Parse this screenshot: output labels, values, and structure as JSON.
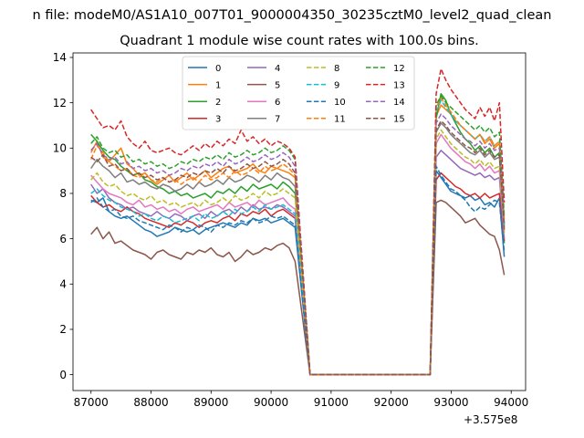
{
  "suptitle": "n file: modeM0/AS1A10_007T01_9000004350_30235cztM0_level2_quad_clean",
  "chart_data": {
    "type": "line",
    "title": "Quadrant 1 module wise count rates with 100.0s bins.",
    "xlabel": "",
    "ylabel": "",
    "x_offset_label": "+3.575e8",
    "xlim": [
      86700,
      94240
    ],
    "ylim": [
      -0.7,
      14.2
    ],
    "xticks": [
      87000,
      88000,
      89000,
      90000,
      91000,
      92000,
      93000,
      94000
    ],
    "yticks": [
      0,
      2,
      4,
      6,
      8,
      10,
      12,
      14
    ],
    "legend_loc": "upper center",
    "legend_ncol": 4,
    "gap_x": [
      90650,
      92650
    ],
    "series": [
      {
        "name": "0",
        "color": "#1f77b4",
        "dash": "solid",
        "start": [
          7.7,
          7.6,
          7.8,
          7.2,
          7.0,
          6.9,
          7.0,
          6.8,
          6.6,
          6.4,
          6.3,
          6.1,
          6.2,
          6.3,
          6.5,
          6.4,
          6.3,
          6.4,
          6.2,
          6.4,
          6.5,
          6.6,
          6.7,
          6.6,
          6.5,
          6.7,
          6.6,
          6.9,
          6.8,
          6.9,
          6.7,
          6.8,
          6.9,
          6.7,
          6.5
        ],
        "end": [
          9.0,
          8.7,
          8.4,
          8.1,
          8.0,
          7.9,
          7.8,
          7.9,
          7.7,
          7.8,
          7.5,
          7.6,
          7.4,
          7.8,
          5.2
        ]
      },
      {
        "name": "1",
        "color": "#ff7f0e",
        "dash": "solid",
        "start": [
          9.8,
          10.3,
          9.6,
          9.4,
          9.7,
          10.0,
          9.3,
          9.1,
          8.8,
          8.9,
          8.6,
          8.4,
          8.6,
          8.8,
          8.5,
          8.7,
          8.9,
          8.6,
          8.8,
          9.0,
          8.7,
          8.9,
          9.1,
          9.2,
          8.9,
          9.0,
          9.1,
          9.3,
          9.0,
          8.9,
          9.2,
          9.1,
          9.0,
          8.9,
          8.7
        ],
        "end": [
          11.4,
          11.9,
          11.7,
          11.5,
          11.2,
          11.0,
          10.8,
          10.6,
          10.4,
          10.6,
          10.2,
          10.4,
          10.0,
          10.2,
          6.5
        ]
      },
      {
        "name": "2",
        "color": "#2ca02c",
        "dash": "solid",
        "start": [
          10.6,
          10.3,
          9.9,
          9.6,
          9.5,
          9.2,
          9.0,
          8.8,
          8.9,
          8.6,
          8.5,
          8.3,
          8.2,
          8.0,
          8.1,
          7.9,
          8.0,
          7.8,
          7.9,
          8.0,
          7.8,
          8.1,
          8.0,
          8.2,
          8.0,
          8.3,
          8.1,
          8.4,
          8.2,
          8.3,
          8.4,
          8.2,
          8.5,
          8.3,
          8.0
        ],
        "end": [
          11.3,
          12.4,
          12.1,
          11.5,
          11.1,
          10.7,
          10.4,
          10.2,
          9.9,
          10.1,
          9.8,
          10.0,
          9.6,
          9.8,
          5.8
        ]
      },
      {
        "name": "3",
        "color": "#d62728",
        "dash": "solid",
        "start": [
          7.9,
          7.6,
          7.4,
          7.5,
          7.3,
          7.2,
          7.4,
          7.2,
          7.1,
          6.9,
          6.8,
          6.7,
          6.6,
          6.5,
          6.7,
          6.6,
          6.8,
          6.7,
          6.5,
          6.7,
          6.8,
          6.7,
          6.9,
          7.0,
          6.8,
          7.1,
          7.0,
          7.2,
          7.1,
          7.3,
          7.0,
          7.2,
          7.3,
          7.1,
          6.9
        ],
        "end": [
          8.6,
          8.9,
          8.7,
          8.5,
          8.3,
          8.2,
          8.0,
          7.9,
          8.0,
          7.8,
          8.0,
          7.8,
          7.9,
          8.0,
          5.9
        ]
      },
      {
        "name": "4",
        "color": "#9467bd",
        "dash": "solid",
        "start": [
          8.4,
          8.0,
          8.2,
          7.8,
          7.6,
          7.5,
          7.3,
          7.4,
          7.2,
          7.1,
          7.0,
          7.2,
          7.0,
          6.9,
          7.1,
          7.0,
          6.8,
          7.0,
          7.1,
          6.9,
          7.2,
          7.0,
          7.2,
          7.3,
          7.1,
          7.4,
          7.2,
          7.5,
          7.3,
          7.4,
          7.3,
          7.5,
          7.4,
          7.2,
          7.0
        ],
        "end": [
          9.6,
          9.9,
          9.7,
          9.5,
          9.3,
          9.1,
          9.0,
          8.9,
          8.8,
          8.9,
          8.7,
          8.8,
          8.6,
          8.7,
          6.0
        ]
      },
      {
        "name": "5",
        "color": "#8c564b",
        "dash": "solid",
        "start": [
          6.2,
          6.5,
          6.0,
          6.3,
          5.8,
          5.9,
          5.7,
          5.5,
          5.4,
          5.3,
          5.1,
          5.4,
          5.5,
          5.3,
          5.2,
          5.1,
          5.4,
          5.3,
          5.5,
          5.4,
          5.6,
          5.3,
          5.2,
          5.4,
          5.0,
          5.2,
          5.5,
          5.3,
          5.4,
          5.6,
          5.5,
          5.7,
          5.8,
          5.6,
          5.0
        ],
        "end": [
          7.6,
          7.7,
          7.6,
          7.4,
          7.2,
          7.0,
          6.7,
          6.8,
          6.9,
          6.6,
          6.4,
          6.2,
          6.1,
          5.5,
          4.4
        ]
      },
      {
        "name": "6",
        "color": "#e377c2",
        "dash": "solid",
        "start": [
          8.8,
          8.5,
          8.2,
          8.0,
          7.9,
          7.8,
          7.6,
          7.5,
          7.7,
          7.4,
          7.5,
          7.3,
          7.4,
          7.2,
          7.3,
          7.1,
          7.3,
          7.4,
          7.2,
          7.3,
          7.4,
          7.5,
          7.3,
          7.6,
          7.4,
          7.5,
          7.6,
          7.4,
          7.7,
          7.5,
          7.6,
          7.7,
          7.8,
          7.5,
          7.3
        ],
        "end": [
          10.2,
          10.6,
          10.3,
          10.0,
          9.8,
          9.6,
          9.4,
          9.3,
          9.1,
          9.3,
          9.0,
          9.2,
          8.9,
          9.0,
          6.3
        ]
      },
      {
        "name": "7",
        "color": "#7f7f7f",
        "dash": "solid",
        "start": [
          9.1,
          9.5,
          9.2,
          9.0,
          8.7,
          8.9,
          8.5,
          8.6,
          8.4,
          8.5,
          8.3,
          8.2,
          8.4,
          8.3,
          8.1,
          8.2,
          8.4,
          8.2,
          8.5,
          8.3,
          8.4,
          8.6,
          8.4,
          8.7,
          8.5,
          8.6,
          8.8,
          8.7,
          8.5,
          8.8,
          8.6,
          8.9,
          8.7,
          8.6,
          8.3
        ],
        "end": [
          10.7,
          11.1,
          10.9,
          10.6,
          10.4,
          10.2,
          10.0,
          9.8,
          9.7,
          9.9,
          9.6,
          9.8,
          9.5,
          9.6,
          6.6
        ]
      },
      {
        "name": "8",
        "color": "#bcbd22",
        "dash": "dashed",
        "start": [
          8.6,
          8.9,
          8.5,
          8.3,
          8.4,
          8.1,
          7.9,
          8.0,
          7.8,
          7.7,
          7.9,
          7.6,
          7.7,
          7.5,
          7.6,
          7.4,
          7.5,
          7.6,
          7.4,
          7.7,
          7.5,
          7.6,
          7.8,
          7.6,
          7.9,
          7.7,
          7.8,
          8.0,
          7.8,
          8.1,
          7.9,
          8.0,
          8.2,
          8.0,
          7.8
        ],
        "end": [
          10.4,
          10.8,
          10.5,
          10.2,
          10.0,
          9.8,
          9.6,
          9.5,
          9.3,
          9.5,
          9.2,
          9.4,
          9.1,
          9.2,
          6.2
        ]
      },
      {
        "name": "9",
        "color": "#17becf",
        "dash": "dashed",
        "start": [
          8.0,
          8.2,
          7.9,
          7.7,
          7.6,
          7.4,
          7.3,
          7.2,
          7.0,
          7.1,
          6.9,
          6.8,
          7.0,
          6.9,
          6.7,
          6.8,
          6.9,
          7.0,
          6.8,
          7.1,
          6.9,
          7.0,
          7.2,
          7.0,
          7.3,
          7.1,
          7.2,
          7.4,
          7.2,
          7.5,
          7.3,
          7.4,
          7.5,
          7.3,
          7.1
        ],
        "end": [
          11.6,
          12.1,
          11.8,
          11.5,
          11.2,
          11.0,
          10.8,
          10.6,
          10.4,
          10.6,
          10.3,
          10.5,
          10.1,
          10.3,
          6.6
        ]
      },
      {
        "name": "10",
        "color": "#1f77b4",
        "dash": "dashed",
        "start": [
          7.6,
          7.8,
          7.4,
          7.2,
          7.3,
          7.0,
          6.9,
          7.0,
          6.8,
          6.7,
          6.6,
          6.5,
          6.4,
          6.6,
          6.5,
          6.3,
          6.5,
          6.4,
          6.6,
          6.5,
          6.3,
          6.6,
          6.5,
          6.7,
          6.6,
          6.8,
          6.7,
          6.9,
          6.7,
          6.8,
          7.0,
          6.9,
          7.0,
          6.8,
          6.6
        ],
        "end": [
          9.2,
          8.8,
          8.5,
          8.2,
          8.1,
          7.9,
          7.7,
          7.4,
          7.2,
          7.4,
          7.3,
          7.5,
          7.7,
          7.6,
          5.4
        ]
      },
      {
        "name": "11",
        "color": "#ff7f0e",
        "dash": "dashed",
        "start": [
          9.5,
          10.1,
          9.8,
          9.4,
          9.2,
          9.0,
          9.1,
          8.8,
          8.7,
          8.9,
          8.6,
          8.5,
          8.7,
          8.5,
          8.6,
          8.4,
          8.6,
          8.7,
          8.5,
          8.8,
          8.6,
          8.7,
          8.9,
          8.7,
          9.0,
          8.8,
          8.9,
          9.1,
          8.9,
          9.2,
          9.0,
          9.1,
          9.3,
          9.1,
          8.8
        ],
        "end": [
          11.8,
          12.2,
          11.9,
          11.6,
          11.3,
          11.0,
          10.8,
          10.6,
          10.4,
          10.6,
          10.3,
          10.5,
          10.1,
          10.3,
          6.8
        ]
      },
      {
        "name": "12",
        "color": "#2ca02c",
        "dash": "dashed",
        "start": [
          10.2,
          10.5,
          10.0,
          9.8,
          9.9,
          9.6,
          9.7,
          9.4,
          9.5,
          9.3,
          9.4,
          9.2,
          9.3,
          9.1,
          9.2,
          9.4,
          9.3,
          9.5,
          9.4,
          9.6,
          9.5,
          9.7,
          9.5,
          9.8,
          9.6,
          9.7,
          9.9,
          9.7,
          9.8,
          10.0,
          9.8,
          9.9,
          10.1,
          9.9,
          9.5
        ],
        "end": [
          11.9,
          12.3,
          12.0,
          11.8,
          11.6,
          11.4,
          11.2,
          11.0,
          10.8,
          11.0,
          10.7,
          10.9,
          10.5,
          10.7,
          7.0
        ]
      },
      {
        "name": "13",
        "color": "#d62728",
        "dash": "dashed",
        "start": [
          11.7,
          11.3,
          10.9,
          11.0,
          10.8,
          11.2,
          10.5,
          10.2,
          10.0,
          10.3,
          9.9,
          9.8,
          9.9,
          10.0,
          9.8,
          9.7,
          9.9,
          10.1,
          9.9,
          10.2,
          10.0,
          10.3,
          10.1,
          10.4,
          10.2,
          10.8,
          10.3,
          10.5,
          10.2,
          10.4,
          10.1,
          10.3,
          10.2,
          10.0,
          9.6
        ],
        "end": [
          12.4,
          13.5,
          13.0,
          12.6,
          12.3,
          12.0,
          11.7,
          11.5,
          11.3,
          11.8,
          11.4,
          11.8,
          11.2,
          12.0,
          7.6
        ]
      },
      {
        "name": "14",
        "color": "#9467bd",
        "dash": "dashed",
        "start": [
          9.9,
          10.2,
          9.7,
          9.5,
          9.6,
          9.3,
          9.4,
          9.1,
          9.2,
          9.0,
          9.1,
          8.9,
          9.0,
          8.8,
          8.9,
          9.1,
          9.0,
          9.2,
          9.1,
          9.3,
          9.2,
          9.4,
          9.2,
          9.5,
          9.3,
          9.4,
          9.6,
          9.4,
          9.5,
          9.7,
          9.5,
          9.6,
          9.8,
          9.6,
          9.2
        ],
        "end": [
          11.1,
          11.5,
          11.3,
          11.0,
          10.8,
          10.6,
          10.4,
          10.3,
          10.1,
          10.3,
          10.0,
          10.2,
          9.9,
          10.0,
          6.7
        ]
      },
      {
        "name": "15",
        "color": "#8c564b",
        "dash": "dashed",
        "start": [
          9.6,
          9.4,
          9.7,
          9.2,
          9.3,
          9.0,
          9.1,
          8.8,
          8.9,
          8.7,
          8.8,
          8.6,
          8.7,
          8.5,
          8.6,
          8.8,
          8.7,
          8.9,
          8.8,
          9.0,
          8.9,
          9.1,
          8.9,
          9.2,
          9.0,
          9.1,
          9.3,
          9.1,
          9.2,
          9.4,
          9.2,
          9.3,
          9.5,
          9.3,
          8.9
        ],
        "end": [
          10.8,
          11.2,
          11.0,
          10.7,
          10.5,
          10.3,
          10.1,
          10.0,
          9.8,
          10.0,
          9.7,
          9.9,
          9.6,
          9.7,
          6.4
        ]
      }
    ]
  }
}
